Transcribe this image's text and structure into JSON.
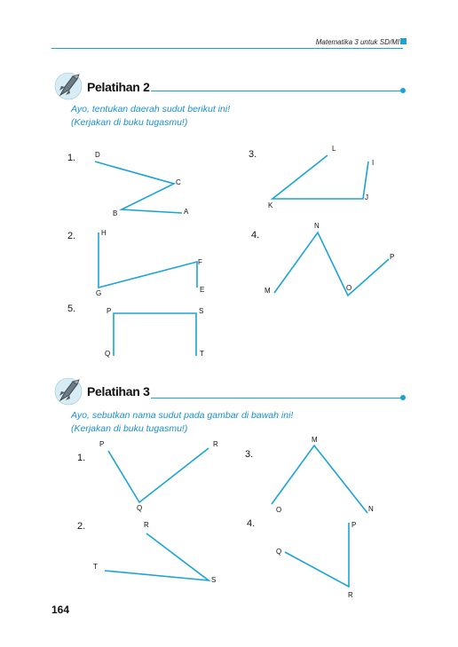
{
  "header": {
    "text": "Matematika 3 untuk SD/MI"
  },
  "sections": [
    {
      "title": "Pelatihan 2",
      "instruction_line1": "Ayo, tentukan daerah sudut berikut ini!",
      "instruction_line2": "(Kerjakan di buku tugasmu!)",
      "numbers": [
        "1.",
        "2.",
        "3.",
        "4.",
        "5."
      ]
    },
    {
      "title": "Pelatihan 3",
      "instruction_line1": "Ayo, sebutkan nama sudut pada gambar di bawah ini!",
      "instruction_line2": "(Kerjakan di buku tugasmu!)",
      "numbers": [
        "1.",
        "2.",
        "3.",
        "4."
      ]
    }
  ],
  "figure_labels": {
    "p2_1": [
      "D",
      "C",
      "B",
      "A"
    ],
    "p2_2": [
      "H",
      "F",
      "G",
      "E"
    ],
    "p2_3": [
      "L",
      "I",
      "K",
      "J"
    ],
    "p2_4": [
      "N",
      "P",
      "M",
      "O"
    ],
    "p2_5": [
      "P",
      "S",
      "Q",
      "T"
    ],
    "p3_1": [
      "P",
      "R",
      "Q"
    ],
    "p3_2": [
      "R",
      "T",
      "S"
    ],
    "p3_3": [
      "M",
      "O",
      "N"
    ],
    "p3_4": [
      "P",
      "Q",
      "R"
    ]
  },
  "colors": {
    "accent": "#1ba3d6",
    "instruction_text": "#1a8fd0"
  },
  "icons": [
    "rocket-icon",
    "rocket-icon"
  ],
  "page_number": "164"
}
